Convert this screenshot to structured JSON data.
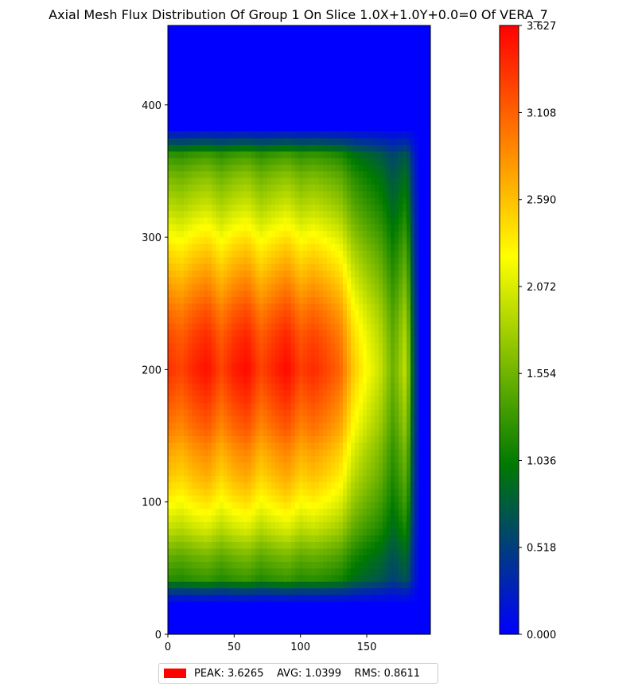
{
  "chart_data": [
    {
      "type": "heatmap",
      "title": "Axial Mesh Flux Distribution Of Group 1 On Slice 1.0X+1.0Y+0.0=0 Of VERA_7",
      "xlabel": "",
      "ylabel": "",
      "xlim": [
        0,
        198
      ],
      "ylim": [
        0,
        460
      ],
      "xticks": [
        0,
        50,
        100,
        150
      ],
      "yticks": [
        0,
        100,
        200,
        300,
        400
      ],
      "grid": false,
      "colormap": [
        "#0000ff",
        "#007a00",
        "#ffff00",
        "#ff0000"
      ],
      "axial_profile": {
        "z": [
          0,
          25,
          30,
          35,
          40,
          60,
          80,
          100,
          120,
          140,
          155,
          180,
          200,
          225,
          245,
          260,
          275,
          290,
          305,
          325,
          345,
          362,
          382,
          420,
          460
        ],
        "relative_flux": [
          0.0,
          0.0,
          0.12,
          0.18,
          0.35,
          0.45,
          0.58,
          0.68,
          0.76,
          0.82,
          0.88,
          0.95,
          1.0,
          0.96,
          0.9,
          0.84,
          0.78,
          0.72,
          0.65,
          0.56,
          0.48,
          0.38,
          0.0,
          0.0,
          0.0
        ]
      },
      "radial_profile": {
        "x": [
          0,
          10,
          20,
          30,
          40,
          50,
          60,
          70,
          80,
          90,
          100,
          110,
          120,
          130,
          140,
          150,
          160,
          170,
          180,
          185,
          190,
          198
        ],
        "relative_flux": [
          0.93,
          0.9,
          0.95,
          0.98,
          0.9,
          0.96,
          0.99,
          0.9,
          0.95,
          0.99,
          0.91,
          0.94,
          0.9,
          0.85,
          0.7,
          0.62,
          0.55,
          0.42,
          0.55,
          0.22,
          0.0,
          0.0
        ]
      }
    },
    {
      "type": "colorbar",
      "range": [
        0.0,
        3.627
      ],
      "ticks": [
        "0.000",
        "0.518",
        "1.036",
        "1.554",
        "2.072",
        "2.590",
        "3.108",
        "3.627"
      ]
    }
  ],
  "legend": {
    "swatch_color": "#ff0000",
    "text": "PEAK: 3.6265    AVG: 1.0399    RMS: 0.8611"
  }
}
